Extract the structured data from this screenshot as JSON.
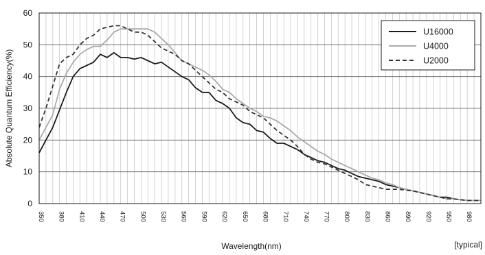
{
  "chart_data": {
    "type": "line",
    "title": "",
    "xlabel": "Wavelength(nm)",
    "ylabel": "Absolute Quantum Efficiency(%)",
    "footnote": "[typical]",
    "xlim": [
      350,
      1000
    ],
    "ylim": [
      0,
      60
    ],
    "x_ticks": [
      350,
      380,
      410,
      440,
      470,
      500,
      530,
      560,
      590,
      620,
      650,
      680,
      710,
      740,
      770,
      800,
      830,
      860,
      890,
      920,
      950,
      980
    ],
    "y_ticks": [
      0,
      10,
      20,
      30,
      40,
      50,
      60
    ],
    "grid": true,
    "legend_position": "top-right",
    "series": [
      {
        "name": "U16000",
        "color": "#1a1a1a",
        "dash": "solid",
        "points": [
          [
            350,
            16
          ],
          [
            360,
            20
          ],
          [
            370,
            24
          ],
          [
            380,
            29.5
          ],
          [
            390,
            35
          ],
          [
            400,
            40
          ],
          [
            410,
            42.5
          ],
          [
            420,
            43.5
          ],
          [
            430,
            44.5
          ],
          [
            440,
            47
          ],
          [
            450,
            46
          ],
          [
            460,
            47.5
          ],
          [
            470,
            46
          ],
          [
            480,
            46
          ],
          [
            490,
            45.5
          ],
          [
            500,
            46
          ],
          [
            510,
            45
          ],
          [
            520,
            44
          ],
          [
            530,
            44.5
          ],
          [
            540,
            43
          ],
          [
            550,
            41.5
          ],
          [
            560,
            40
          ],
          [
            570,
            39
          ],
          [
            580,
            36.5
          ],
          [
            590,
            35
          ],
          [
            600,
            35
          ],
          [
            610,
            32.5
          ],
          [
            620,
            31.5
          ],
          [
            630,
            30
          ],
          [
            640,
            27
          ],
          [
            650,
            25.5
          ],
          [
            660,
            25
          ],
          [
            670,
            23
          ],
          [
            680,
            22.5
          ],
          [
            690,
            20.5
          ],
          [
            700,
            19
          ],
          [
            710,
            19
          ],
          [
            720,
            18
          ],
          [
            730,
            17
          ],
          [
            740,
            15.5
          ],
          [
            750,
            14.5
          ],
          [
            760,
            13.5
          ],
          [
            770,
            13
          ],
          [
            780,
            12
          ],
          [
            790,
            11
          ],
          [
            800,
            10.5
          ],
          [
            810,
            9.5
          ],
          [
            820,
            8.5
          ],
          [
            830,
            8
          ],
          [
            840,
            7.5
          ],
          [
            850,
            7
          ],
          [
            860,
            6
          ],
          [
            870,
            5.5
          ],
          [
            880,
            5
          ],
          [
            890,
            4.5
          ],
          [
            900,
            4
          ],
          [
            910,
            3.5
          ],
          [
            920,
            3
          ],
          [
            930,
            2.5
          ],
          [
            940,
            2
          ],
          [
            950,
            2
          ],
          [
            960,
            1.5
          ],
          [
            970,
            1.2
          ],
          [
            980,
            1
          ],
          [
            990,
            1
          ],
          [
            1000,
            1
          ]
        ]
      },
      {
        "name": "U4000",
        "color": "#aaaaaa",
        "dash": "solid",
        "points": [
          [
            350,
            20
          ],
          [
            360,
            24
          ],
          [
            370,
            28
          ],
          [
            380,
            36
          ],
          [
            390,
            41
          ],
          [
            400,
            44.5
          ],
          [
            410,
            47
          ],
          [
            420,
            48.5
          ],
          [
            430,
            49.5
          ],
          [
            440,
            49.5
          ],
          [
            450,
            51.5
          ],
          [
            460,
            54
          ],
          [
            470,
            55
          ],
          [
            480,
            55
          ],
          [
            490,
            55
          ],
          [
            500,
            55
          ],
          [
            510,
            55
          ],
          [
            520,
            54
          ],
          [
            530,
            52
          ],
          [
            540,
            50
          ],
          [
            550,
            47.5
          ],
          [
            560,
            45
          ],
          [
            570,
            44
          ],
          [
            580,
            43
          ],
          [
            590,
            42
          ],
          [
            600,
            40.5
          ],
          [
            610,
            38.5
          ],
          [
            620,
            36
          ],
          [
            630,
            35
          ],
          [
            640,
            33
          ],
          [
            650,
            31.5
          ],
          [
            660,
            30
          ],
          [
            670,
            29
          ],
          [
            680,
            27.5
          ],
          [
            690,
            27
          ],
          [
            700,
            26
          ],
          [
            710,
            24.5
          ],
          [
            720,
            23
          ],
          [
            730,
            21
          ],
          [
            740,
            19.5
          ],
          [
            750,
            18
          ],
          [
            760,
            16.5
          ],
          [
            770,
            15.5
          ],
          [
            780,
            14
          ],
          [
            790,
            13
          ],
          [
            800,
            12
          ],
          [
            810,
            11
          ],
          [
            820,
            10
          ],
          [
            830,
            9
          ],
          [
            840,
            8
          ],
          [
            850,
            7.5
          ],
          [
            860,
            6.5
          ],
          [
            870,
            6
          ],
          [
            880,
            5
          ],
          [
            890,
            4.5
          ],
          [
            900,
            4
          ],
          [
            910,
            3.5
          ],
          [
            920,
            3
          ],
          [
            930,
            2.5
          ],
          [
            940,
            2
          ],
          [
            950,
            1.5
          ],
          [
            960,
            1.5
          ],
          [
            970,
            1.2
          ],
          [
            980,
            1
          ],
          [
            990,
            1
          ],
          [
            1000,
            1
          ]
        ]
      },
      {
        "name": "U2000",
        "color": "#333333",
        "dash": "dashed",
        "points": [
          [
            350,
            24
          ],
          [
            360,
            30
          ],
          [
            370,
            37
          ],
          [
            380,
            44
          ],
          [
            390,
            46
          ],
          [
            400,
            47
          ],
          [
            410,
            50
          ],
          [
            420,
            52
          ],
          [
            430,
            53
          ],
          [
            440,
            55
          ],
          [
            450,
            55.5
          ],
          [
            460,
            56
          ],
          [
            470,
            56
          ],
          [
            480,
            55
          ],
          [
            490,
            54
          ],
          [
            500,
            54
          ],
          [
            510,
            53
          ],
          [
            520,
            51
          ],
          [
            530,
            49
          ],
          [
            540,
            48
          ],
          [
            550,
            47
          ],
          [
            560,
            45
          ],
          [
            570,
            44
          ],
          [
            580,
            42
          ],
          [
            590,
            40
          ],
          [
            600,
            38
          ],
          [
            610,
            36
          ],
          [
            620,
            35
          ],
          [
            630,
            33
          ],
          [
            640,
            32
          ],
          [
            650,
            31
          ],
          [
            660,
            29
          ],
          [
            670,
            28
          ],
          [
            680,
            27
          ],
          [
            690,
            25
          ],
          [
            700,
            23
          ],
          [
            710,
            21.5
          ],
          [
            720,
            20
          ],
          [
            730,
            18
          ],
          [
            740,
            15.5
          ],
          [
            750,
            14
          ],
          [
            760,
            13
          ],
          [
            770,
            12.5
          ],
          [
            780,
            11.5
          ],
          [
            790,
            10.5
          ],
          [
            800,
            9.5
          ],
          [
            810,
            8.5
          ],
          [
            820,
            7.5
          ],
          [
            830,
            6
          ],
          [
            840,
            5.5
          ],
          [
            850,
            5
          ],
          [
            860,
            4.5
          ],
          [
            870,
            4.5
          ],
          [
            880,
            4.5
          ],
          [
            890,
            4.2
          ],
          [
            900,
            4
          ],
          [
            910,
            3.5
          ],
          [
            920,
            3
          ],
          [
            930,
            2.5
          ],
          [
            940,
            2
          ],
          [
            950,
            1.5
          ],
          [
            960,
            1.5
          ],
          [
            970,
            1.2
          ],
          [
            980,
            1
          ],
          [
            990,
            1
          ],
          [
            1000,
            1
          ]
        ]
      }
    ]
  }
}
